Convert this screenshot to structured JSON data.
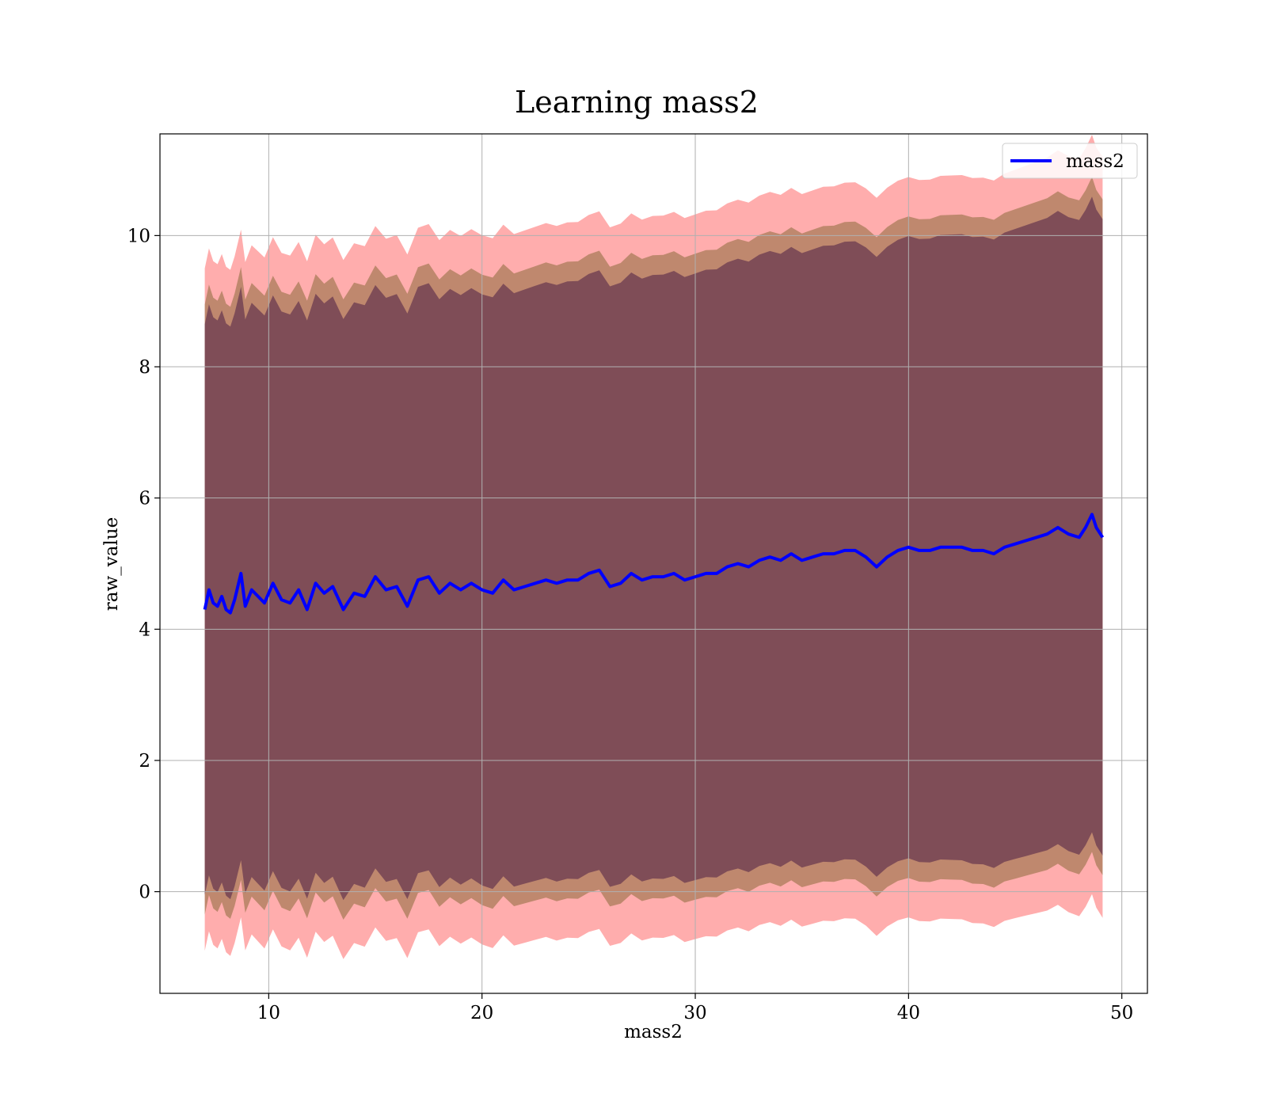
{
  "chart_data": {
    "type": "line",
    "title": "Learning mass2",
    "xlabel": "mass2",
    "ylabel": "raw_value",
    "xlim": [
      4.9,
      51.2
    ],
    "ylim": [
      -1.55,
      11.55
    ],
    "xticks": [
      10,
      20,
      30,
      40,
      50
    ],
    "yticks": [
      0,
      2,
      4,
      6,
      8,
      10
    ],
    "grid": true,
    "legend_position": "top-right",
    "colors": {
      "line": "#0000ff",
      "band_outer": "#ff0000",
      "band_middle": "#8b6a3a",
      "band_inner": "#6a3a50",
      "grid": "#b0b0b0"
    },
    "series": [
      {
        "name": "mass2",
        "x": [
          7.0,
          7.2,
          7.4,
          7.6,
          7.8,
          8.0,
          8.2,
          8.4,
          8.7,
          8.9,
          9.2,
          9.5,
          9.8,
          10.2,
          10.6,
          11.0,
          11.4,
          11.8,
          12.2,
          12.6,
          13.0,
          13.5,
          14.0,
          14.5,
          15.0,
          15.5,
          16.0,
          16.5,
          17.0,
          17.5,
          18.0,
          18.5,
          19.0,
          19.5,
          20.0,
          20.5,
          21.0,
          21.5,
          22.0,
          22.5,
          23.0,
          23.5,
          24.0,
          24.5,
          25.0,
          25.5,
          26.0,
          26.5,
          27.0,
          27.5,
          28.0,
          28.5,
          29.0,
          29.5,
          30.0,
          30.5,
          31.0,
          31.5,
          32.0,
          32.5,
          33.0,
          33.5,
          34.0,
          34.5,
          35.0,
          35.5,
          36.0,
          36.5,
          37.0,
          37.5,
          38.0,
          38.5,
          39.0,
          39.5,
          40.0,
          40.5,
          41.0,
          41.5,
          42.0,
          42.5,
          43.0,
          43.5,
          44.0,
          44.5,
          45.0,
          45.5,
          46.0,
          46.5,
          47.0,
          47.5,
          48.0,
          48.3,
          48.6,
          48.8,
          49.1
        ],
        "y": [
          4.3,
          4.6,
          4.4,
          4.35,
          4.5,
          4.3,
          4.25,
          4.45,
          4.85,
          4.35,
          4.6,
          4.5,
          4.4,
          4.7,
          4.45,
          4.4,
          4.6,
          4.3,
          4.7,
          4.55,
          4.65,
          4.3,
          4.55,
          4.5,
          4.8,
          4.6,
          4.65,
          4.35,
          4.75,
          4.8,
          4.55,
          4.7,
          4.6,
          4.7,
          4.6,
          4.55,
          4.75,
          4.6,
          4.65,
          4.7,
          4.75,
          4.7,
          4.75,
          4.75,
          4.85,
          4.9,
          4.65,
          4.7,
          4.85,
          4.75,
          4.8,
          4.8,
          4.85,
          4.75,
          4.8,
          4.85,
          4.85,
          4.95,
          5.0,
          4.95,
          5.05,
          5.1,
          5.05,
          5.15,
          5.05,
          5.1,
          5.15,
          5.15,
          5.2,
          5.2,
          5.1,
          4.95,
          5.1,
          5.2,
          5.25,
          5.2,
          5.2,
          5.25,
          5.25,
          5.25,
          5.2,
          5.2,
          5.15,
          5.25,
          5.3,
          5.35,
          5.4,
          5.45,
          5.55,
          5.45,
          5.4,
          5.55,
          5.75,
          5.55,
          5.4
        ]
      }
    ],
    "bands": {
      "inner_halfwidth": [
        4.35,
        4.4,
        4.45,
        4.5,
        4.55,
        4.6,
        4.65,
        4.7,
        4.75,
        4.8,
        4.85
      ],
      "middle_halfwidth": [
        4.65,
        4.7,
        4.75,
        4.8,
        4.85,
        4.9,
        4.95,
        5.0,
        5.05,
        5.1,
        5.15
      ],
      "outer_halfwidth_base": [
        5.2,
        5.3,
        5.35,
        5.4,
        5.45,
        5.5,
        5.55,
        5.6,
        5.65,
        5.7,
        5.8
      ]
    }
  }
}
